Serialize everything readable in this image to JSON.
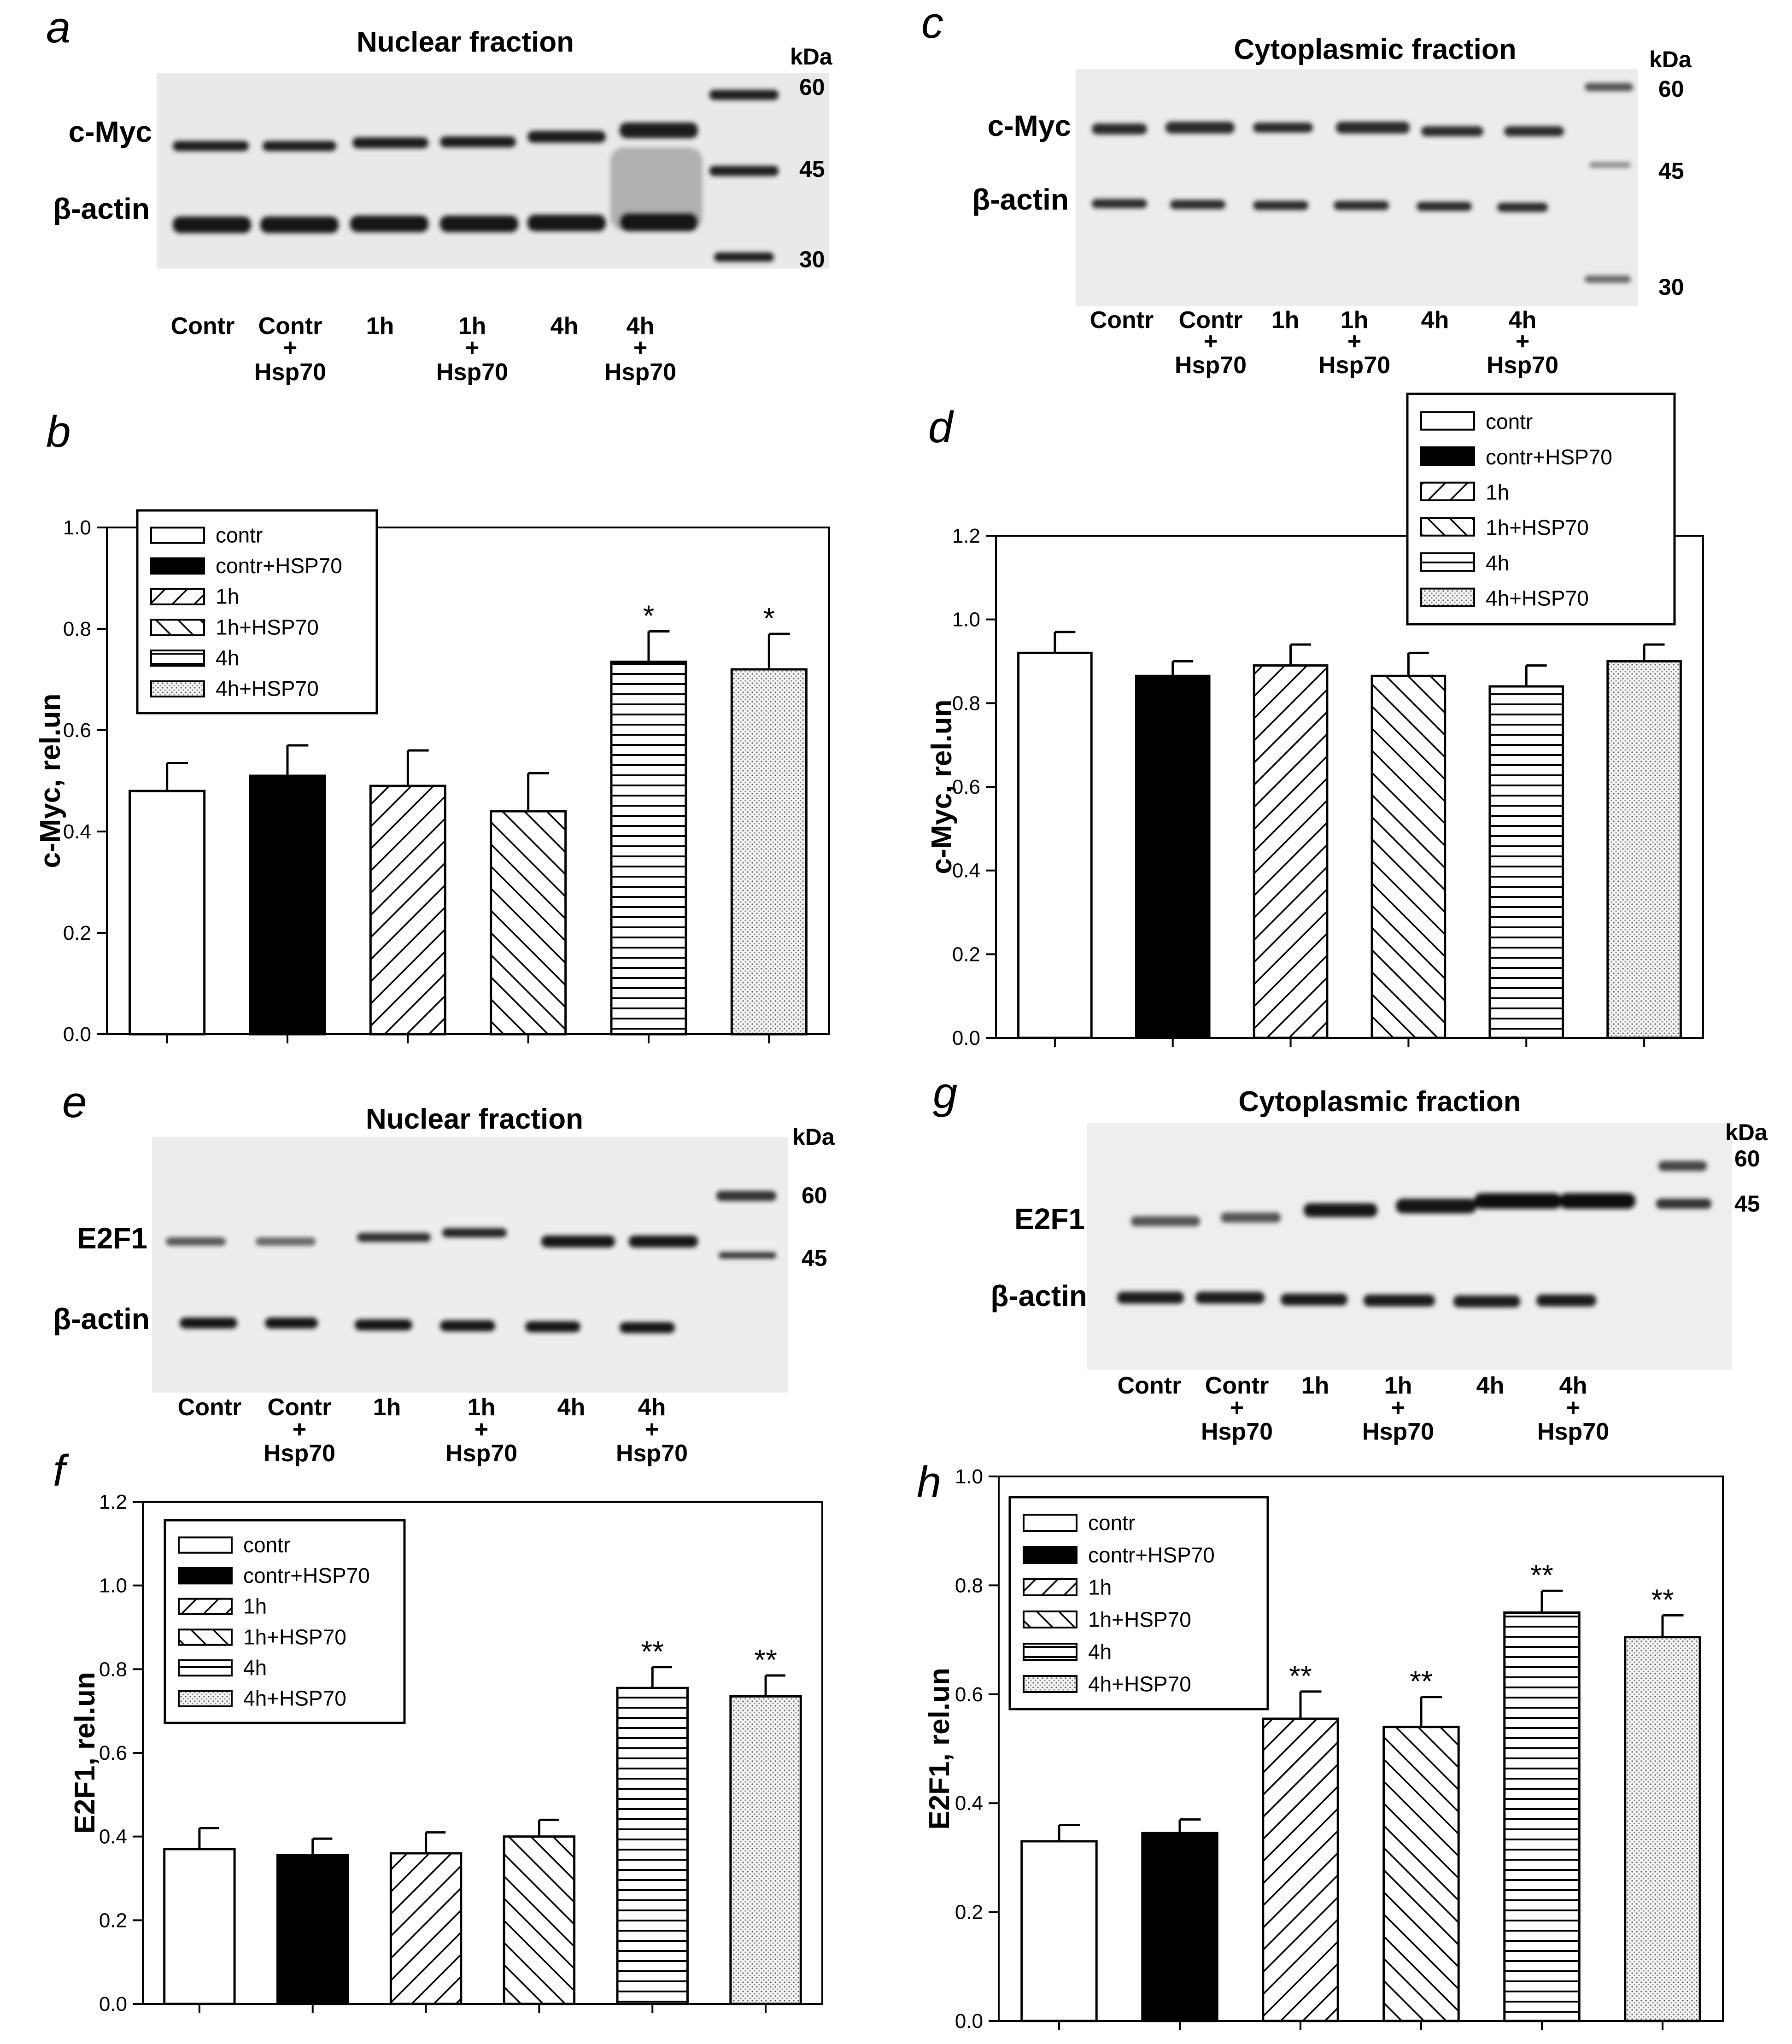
{
  "colors": {
    "background": "#ffffff",
    "ink": "#000000",
    "blot_bg": "#e9e9e9",
    "band": "#1e1e1e"
  },
  "blots": {
    "a": {
      "letter": "a",
      "title": "Nuclear fraction",
      "rows": [
        "c-Myc",
        "β-actin"
      ],
      "markers_label": "kDa",
      "markers": [
        "60",
        "45",
        "30"
      ],
      "lanes": [
        [
          "Contr"
        ],
        [
          "Contr",
          "+",
          "Hsp70"
        ],
        [
          "1h"
        ],
        [
          "1h",
          "+",
          "Hsp70"
        ],
        [
          "4h"
        ],
        [
          "4h",
          "+",
          "Hsp70"
        ]
      ]
    },
    "c": {
      "letter": "c",
      "title": "Cytoplasmic fraction",
      "rows": [
        "c-Myc",
        "β-actin"
      ],
      "markers_label": "kDa",
      "markers": [
        "60",
        "45",
        "30"
      ],
      "lanes": [
        [
          "Contr"
        ],
        [
          "Contr",
          "+",
          "Hsp70"
        ],
        [
          "1h"
        ],
        [
          "1h",
          "+",
          "Hsp70"
        ],
        [
          "4h"
        ],
        [
          "4h",
          "+",
          "Hsp70"
        ]
      ]
    },
    "e": {
      "letter": "e",
      "title": "Nuclear fraction",
      "rows": [
        "E2F1",
        "β-actin"
      ],
      "markers_label": "kDa",
      "markers": [
        "60",
        "45"
      ],
      "lanes": [
        [
          "Contr"
        ],
        [
          "Contr",
          "+",
          "Hsp70"
        ],
        [
          "1h"
        ],
        [
          "1h",
          "+",
          "Hsp70"
        ],
        [
          "4h"
        ],
        [
          "4h",
          "+",
          "Hsp70"
        ]
      ]
    },
    "g": {
      "letter": "g",
      "title": "Cytoplasmic fraction",
      "rows": [
        "E2F1",
        "β-actin"
      ],
      "markers_label": "kDa",
      "markers": [
        "60",
        "45"
      ],
      "lanes": [
        [
          "Contr"
        ],
        [
          "Contr",
          "+",
          "Hsp70"
        ],
        [
          "1h"
        ],
        [
          "1h",
          "+",
          "Hsp70"
        ],
        [
          "4h"
        ],
        [
          "4h",
          "+",
          "Hsp70"
        ]
      ]
    }
  },
  "chart_data": [
    {
      "id": "b",
      "letter": "b",
      "type": "bar",
      "ylabel": "c-Myc, rel.un",
      "xlabel": "",
      "categories": [
        "contr",
        "contr+HSP70",
        "1h",
        "1h+HSP70",
        "4h",
        "4h+HSP70"
      ],
      "values": [
        0.48,
        0.51,
        0.49,
        0.44,
        0.735,
        0.72
      ],
      "errors": [
        0.055,
        0.06,
        0.07,
        0.075,
        0.06,
        0.07
      ],
      "significance": [
        "",
        "",
        "",
        "",
        "*",
        "*"
      ],
      "ylim": [
        0,
        1.0
      ],
      "yticks": [
        "0.0",
        "0.2",
        "0.4",
        "0.6",
        "0.8",
        "1.0"
      ],
      "legend": [
        "contr",
        "contr+HSP70",
        "1h",
        "1h+HSP70",
        "4h",
        "4h+HSP70"
      ],
      "legend_loc": "top-left"
    },
    {
      "id": "d",
      "letter": "d",
      "type": "bar",
      "ylabel": "c-Myc, rel.un",
      "xlabel": "",
      "categories": [
        "contr",
        "contr+HSP70",
        "1h",
        "1h+HSP70",
        "4h",
        "4h+HSP70"
      ],
      "values": [
        0.92,
        0.865,
        0.89,
        0.865,
        0.84,
        0.9
      ],
      "errors": [
        0.05,
        0.035,
        0.05,
        0.055,
        0.05,
        0.04
      ],
      "significance": [
        "",
        "",
        "",
        "",
        "",
        ""
      ],
      "ylim": [
        0,
        1.2
      ],
      "yticks": [
        "0.0",
        "0.2",
        "0.4",
        "0.6",
        "0.8",
        "1.0",
        "1.2"
      ],
      "legend": [
        "contr",
        "contr+HSP70",
        "1h",
        "1h+HSP70",
        "4h",
        "4h+HSP70"
      ],
      "legend_loc": "top-right"
    },
    {
      "id": "f",
      "letter": "f",
      "type": "bar",
      "ylabel": "E2F1, rel.un",
      "xlabel": "",
      "categories": [
        "contr",
        "contr+HSP70",
        "1h",
        "1h+HSP70",
        "4h",
        "4h+HSP70"
      ],
      "values": [
        0.37,
        0.355,
        0.36,
        0.4,
        0.755,
        0.735
      ],
      "errors": [
        0.05,
        0.04,
        0.05,
        0.04,
        0.05,
        0.05
      ],
      "significance": [
        "",
        "",
        "",
        "",
        "**",
        "**"
      ],
      "ylim": [
        0,
        1.2
      ],
      "yticks": [
        "0.0",
        "0.2",
        "0.4",
        "0.6",
        "0.8",
        "1.0",
        "1.2"
      ],
      "legend": [
        "contr",
        "contr+HSP70",
        "1h",
        "1h+HSP70",
        "4h",
        "4h+HSP70"
      ],
      "legend_loc": "top-left"
    },
    {
      "id": "h",
      "letter": "h",
      "type": "bar",
      "ylabel": "E2F1, rel.un",
      "xlabel": "",
      "categories": [
        "contr",
        "contr+HSP70",
        "1h",
        "1h+HSP70",
        "4h",
        "4h+HSP70"
      ],
      "values": [
        0.33,
        0.345,
        0.555,
        0.54,
        0.75,
        0.705
      ],
      "errors": [
        0.03,
        0.025,
        0.05,
        0.055,
        0.04,
        0.04
      ],
      "significance": [
        "",
        "",
        "**",
        "**",
        "**",
        "**"
      ],
      "ylim": [
        0,
        1.0
      ],
      "yticks": [
        "0.0",
        "0.2",
        "0.4",
        "0.6",
        "0.8",
        "1.0"
      ],
      "legend": [
        "contr",
        "contr+HSP70",
        "1h",
        "1h+HSP70",
        "4h",
        "4h+HSP70"
      ],
      "legend_loc": "top-left"
    }
  ]
}
